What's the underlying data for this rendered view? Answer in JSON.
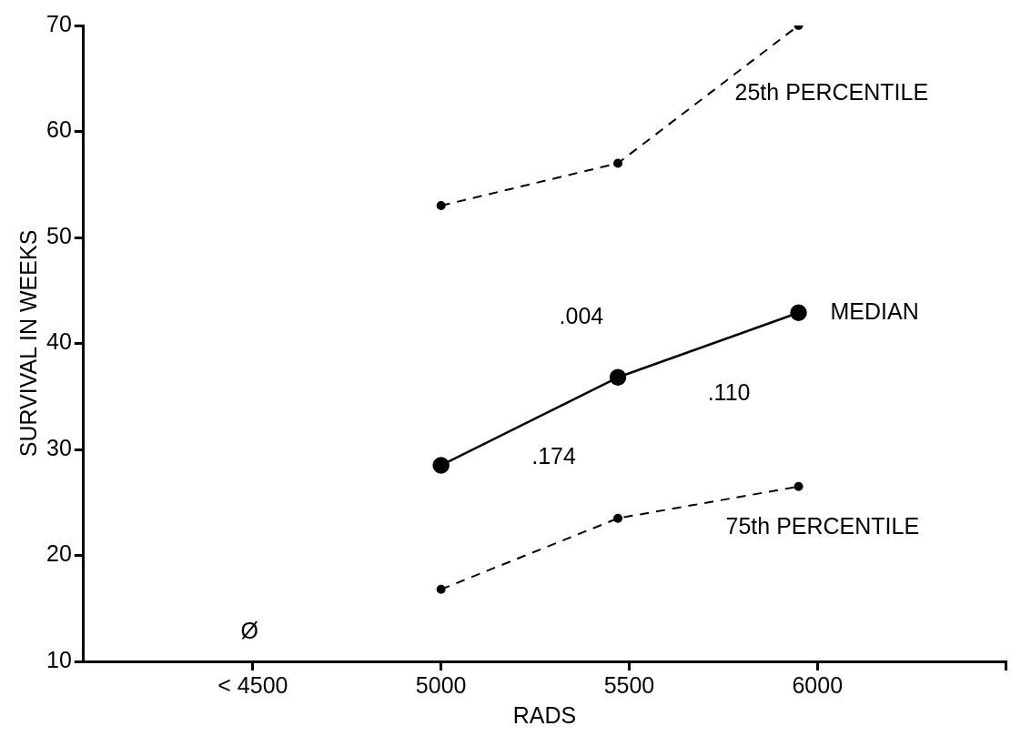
{
  "chart_data": {
    "type": "line",
    "xlabel": "RADS",
    "ylabel": "SURVIVAL IN WEEKS",
    "xlim": [
      4050,
      6500
    ],
    "xticks": [
      {
        "value": 4500,
        "label": "< 4500"
      },
      5000,
      5500,
      6000,
      {
        "value": 6500,
        "label": null
      }
    ],
    "ylim": [
      10,
      70
    ],
    "yticks": [
      10,
      20,
      30,
      40,
      50,
      60,
      70
    ],
    "grid": false,
    "legend": false,
    "series": [
      {
        "name": "25th PERCENTILE",
        "color": "#000000",
        "x": [
          5000,
          5470,
          5950
        ],
        "values": [
          53,
          57,
          70
        ],
        "line_style": "dashed",
        "marker": "circle"
      },
      {
        "name": "MEDIAN",
        "color": "#000000",
        "x": [
          5000,
          5470,
          5950
        ],
        "values": [
          28.5,
          36.8,
          42.9
        ],
        "line_style": "solid",
        "marker": "circle"
      },
      {
        "name": "75th PERCENTILE",
        "color": "#000000",
        "x": [
          5000,
          5470,
          5950
        ],
        "values": [
          16.8,
          23.5,
          26.5
        ],
        "line_style": "dashed",
        "marker": "circle"
      }
    ],
    "annotations": [
      ".004",
      ".174",
      ".110",
      "Ø"
    ]
  }
}
